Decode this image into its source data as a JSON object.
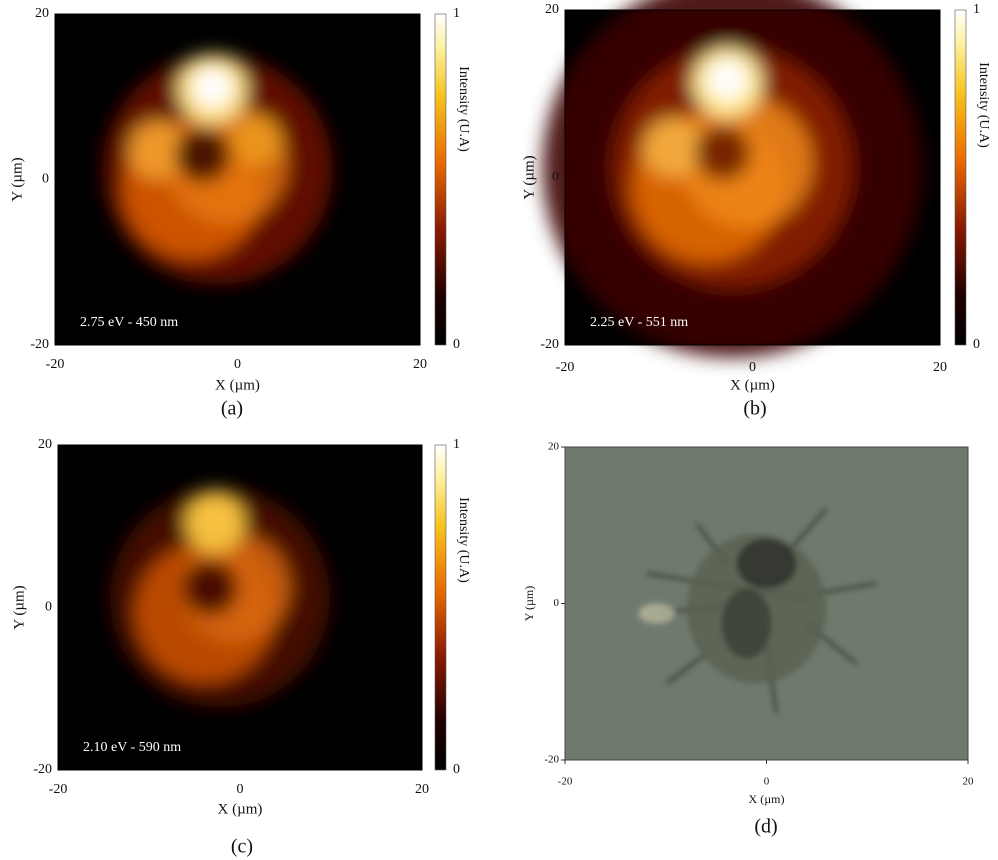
{
  "panels": [
    {
      "caption": "(a)",
      "x_label": "X (µm)",
      "y_label": "Y (µm)",
      "x_ticks": [
        -20,
        0,
        20
      ],
      "y_ticks": [
        -20,
        0,
        20
      ],
      "annotation": "2.75 eV - 450 nm",
      "colorbar": {
        "label": "Intensity (U.A)",
        "ticks": [
          0,
          1
        ]
      }
    },
    {
      "caption": "(b)",
      "x_label": "X (µm)",
      "y_label": "Y (µm)",
      "x_ticks": [
        -20,
        0,
        20
      ],
      "y_ticks": [
        -20,
        0,
        20
      ],
      "annotation": "2.25 eV - 551 nm",
      "colorbar": {
        "label": "Intensity (U.A)",
        "ticks": [
          0,
          1
        ]
      }
    },
    {
      "caption": "(c)",
      "x_label": "X (µm)",
      "y_label": "Y (µm)",
      "x_ticks": [
        -20,
        0,
        20
      ],
      "y_ticks": [
        -20,
        0,
        20
      ],
      "annotation": "2.10 eV - 590 nm",
      "colorbar": {
        "label": "Intensity (U.A)",
        "ticks": [
          0,
          1
        ]
      }
    },
    {
      "caption": "(d)",
      "x_label": "X (µm)",
      "y_label": "Y (µm)",
      "x_ticks": [
        -20,
        0,
        20
      ],
      "y_ticks": [
        -20,
        0,
        20
      ]
    }
  ]
}
